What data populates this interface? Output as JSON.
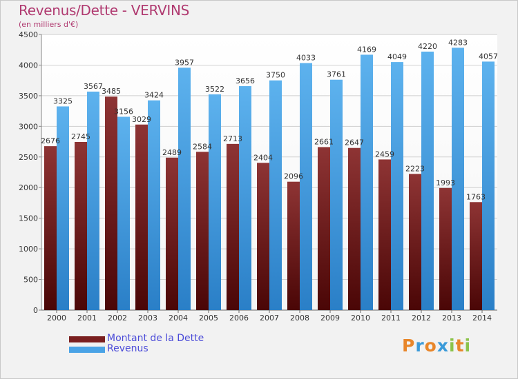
{
  "header": {
    "title": "Revenus/Dette - VERVINS",
    "subtitle": "(en milliers d'€)"
  },
  "legend": {
    "items": [
      {
        "label": "Montant de la Dette",
        "color": "#7a1f1f"
      },
      {
        "label": "Revenus",
        "color": "#4aa3e6"
      }
    ]
  },
  "logo": {
    "text": "Proxiti",
    "letters": [
      {
        "ch": "P",
        "color": "#e8862a"
      },
      {
        "ch": "r",
        "color": "#3a9ad9"
      },
      {
        "ch": "o",
        "color": "#e8862a"
      },
      {
        "ch": "x",
        "color": "#3a9ad9"
      },
      {
        "ch": "i",
        "color": "#8bc34a"
      },
      {
        "ch": "t",
        "color": "#e8862a"
      },
      {
        "ch": "i",
        "color": "#8bc34a"
      }
    ]
  },
  "chart_data": {
    "type": "bar",
    "title": "Revenus/Dette - VERVINS",
    "subtitle": "(en milliers d'€)",
    "categories": [
      "2000",
      "2001",
      "2002",
      "2003",
      "2004",
      "2005",
      "2006",
      "2007",
      "2008",
      "2009",
      "2010",
      "2011",
      "2012",
      "2013",
      "2014"
    ],
    "series": [
      {
        "name": "Montant de la Dette",
        "values": [
          2676,
          2745,
          3485,
          3029,
          2489,
          2584,
          2713,
          2404,
          2096,
          2661,
          2647,
          2459,
          2223,
          1993,
          1763
        ],
        "labels": [
          "2676",
          "2745",
          "3485",
          "3029",
          "2489",
          "2584",
          "2713",
          "2404",
          "2096",
          "2661",
          "2647",
          "2459",
          "2223",
          "1993",
          "1763"
        ],
        "color": "#7a1f1f"
      },
      {
        "name": "Revenus",
        "values": [
          3325,
          3567,
          3156,
          3424,
          3957,
          3522,
          3656,
          3750,
          4033,
          3761,
          4169,
          4049,
          4220,
          4283,
          4057
        ],
        "labels": [
          "3325",
          "3567",
          "3156",
          "3424",
          "3957",
          "3522",
          "3656",
          "3750",
          "4033",
          "3761",
          "4169",
          "4049",
          "4220",
          "4283",
          "4057"
        ],
        "color": "#4aa3e6"
      }
    ],
    "ylim": [
      0,
      4500
    ],
    "yticks": [
      "0",
      "500",
      "1000",
      "1500",
      "2000",
      "2500",
      "3000",
      "3500",
      "4000",
      "4500"
    ],
    "grid": true,
    "legend_position": "bottom-left"
  }
}
